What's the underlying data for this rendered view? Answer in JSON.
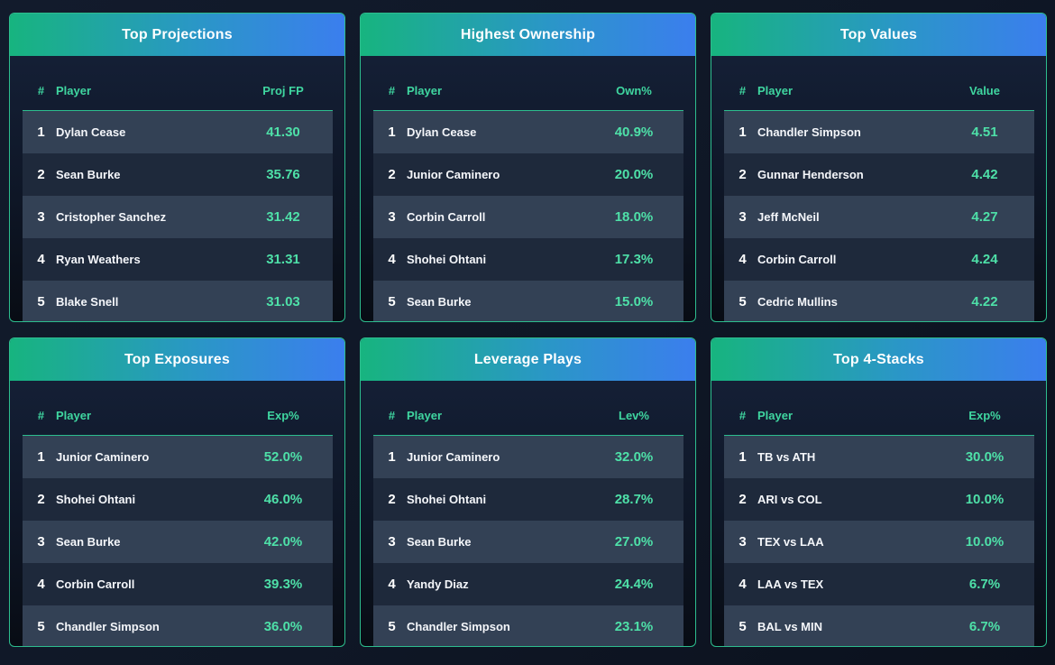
{
  "cards": [
    {
      "title": "Top Projections",
      "headers": {
        "rank": "#",
        "player": "Player",
        "value": "Proj FP"
      },
      "rows": [
        {
          "rank": "1",
          "player": "Dylan Cease",
          "value": "41.30"
        },
        {
          "rank": "2",
          "player": "Sean Burke",
          "value": "35.76"
        },
        {
          "rank": "3",
          "player": "Cristopher Sanchez",
          "value": "31.42"
        },
        {
          "rank": "4",
          "player": "Ryan Weathers",
          "value": "31.31"
        },
        {
          "rank": "5",
          "player": "Blake Snell",
          "value": "31.03"
        }
      ]
    },
    {
      "title": "Highest Ownership",
      "headers": {
        "rank": "#",
        "player": "Player",
        "value": "Own%"
      },
      "rows": [
        {
          "rank": "1",
          "player": "Dylan Cease",
          "value": "40.9%"
        },
        {
          "rank": "2",
          "player": "Junior Caminero",
          "value": "20.0%"
        },
        {
          "rank": "3",
          "player": "Corbin Carroll",
          "value": "18.0%"
        },
        {
          "rank": "4",
          "player": "Shohei Ohtani",
          "value": "17.3%"
        },
        {
          "rank": "5",
          "player": "Sean Burke",
          "value": "15.0%"
        }
      ]
    },
    {
      "title": "Top Values",
      "headers": {
        "rank": "#",
        "player": "Player",
        "value": "Value"
      },
      "rows": [
        {
          "rank": "1",
          "player": "Chandler Simpson",
          "value": "4.51"
        },
        {
          "rank": "2",
          "player": "Gunnar Henderson",
          "value": "4.42"
        },
        {
          "rank": "3",
          "player": "Jeff McNeil",
          "value": "4.27"
        },
        {
          "rank": "4",
          "player": "Corbin Carroll",
          "value": "4.24"
        },
        {
          "rank": "5",
          "player": "Cedric Mullins",
          "value": "4.22"
        }
      ]
    },
    {
      "title": "Top Exposures",
      "headers": {
        "rank": "#",
        "player": "Player",
        "value": "Exp%"
      },
      "rows": [
        {
          "rank": "1",
          "player": "Junior Caminero",
          "value": "52.0%"
        },
        {
          "rank": "2",
          "player": "Shohei Ohtani",
          "value": "46.0%"
        },
        {
          "rank": "3",
          "player": "Sean Burke",
          "value": "42.0%"
        },
        {
          "rank": "4",
          "player": "Corbin Carroll",
          "value": "39.3%"
        },
        {
          "rank": "5",
          "player": "Chandler Simpson",
          "value": "36.0%"
        }
      ]
    },
    {
      "title": "Leverage Plays",
      "headers": {
        "rank": "#",
        "player": "Player",
        "value": "Lev%"
      },
      "rows": [
        {
          "rank": "1",
          "player": "Junior Caminero",
          "value": "32.0%"
        },
        {
          "rank": "2",
          "player": "Shohei Ohtani",
          "value": "28.7%"
        },
        {
          "rank": "3",
          "player": "Sean Burke",
          "value": "27.0%"
        },
        {
          "rank": "4",
          "player": "Yandy Diaz",
          "value": "24.4%"
        },
        {
          "rank": "5",
          "player": "Chandler Simpson",
          "value": "23.1%"
        }
      ]
    },
    {
      "title": "Top 4-Stacks",
      "headers": {
        "rank": "#",
        "player": "Player",
        "value": "Exp%"
      },
      "rows": [
        {
          "rank": "1",
          "player": "TB vs ATH",
          "value": "30.0%"
        },
        {
          "rank": "2",
          "player": "ARI vs COL",
          "value": "10.0%"
        },
        {
          "rank": "3",
          "player": "TEX vs LAA",
          "value": "10.0%"
        },
        {
          "rank": "4",
          "player": "LAA vs TEX",
          "value": "6.7%"
        },
        {
          "rank": "5",
          "player": "BAL vs MIN",
          "value": "6.7%"
        }
      ]
    }
  ]
}
